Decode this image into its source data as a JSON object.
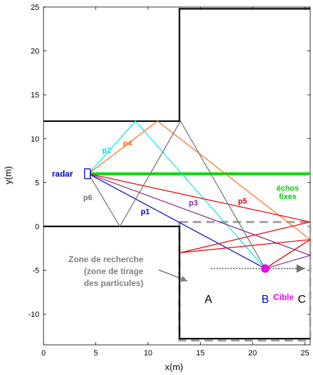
{
  "axes": {
    "xlabel": "x(m)",
    "ylabel": "y(m)",
    "xlim": [
      0,
      25.5
    ],
    "ylim": [
      -13.5,
      25
    ],
    "xticks": [
      0,
      5,
      10,
      15,
      20,
      25
    ],
    "yticks": [
      -10,
      -5,
      0,
      5,
      10,
      15,
      20,
      25
    ]
  },
  "colors": {
    "walls": "#000000",
    "zone": "#a0a0a0",
    "echos": "#00dd00",
    "p1": "#0000cc",
    "p2": "#00e5ee",
    "p3": "#7f2a8f",
    "p4": "#ff6a1a",
    "p5": "#e00000",
    "p6": "#707070",
    "target": "#ee00ee",
    "radar": "#0000cc",
    "scan": "#707070"
  },
  "walls": [
    [
      [
        0,
        12
      ],
      [
        13,
        12
      ],
      [
        13,
        24.8
      ],
      [
        25.5,
        24.8
      ]
    ],
    [
      [
        0,
        0
      ],
      [
        13,
        0
      ],
      [
        13,
        -12.8
      ],
      [
        25.5,
        -12.8
      ]
    ]
  ],
  "zone_outline": [
    [
      13,
      0.5
    ],
    [
      25.5,
      0.5
    ],
    [
      25.5,
      -13
    ],
    [
      13,
      -13
    ],
    [
      13,
      0.5
    ]
  ],
  "echos_line": [
    [
      4.3,
      6
    ],
    [
      25.5,
      6
    ]
  ],
  "radar_pos": [
    4.2,
    6
  ],
  "target_pos": [
    21.2,
    -4.8
  ],
  "scan_line": [
    [
      16,
      -4.8
    ],
    [
      25,
      -4.8
    ]
  ],
  "rays": [
    {
      "id": "p1",
      "label": "p1",
      "points": [
        [
          4.3,
          6
        ],
        [
          21.2,
          -4.8
        ]
      ],
      "label_pos": [
        9.3,
        1.4
      ]
    },
    {
      "id": "p2",
      "label": "p2",
      "points": [
        [
          4.3,
          6
        ],
        [
          8.8,
          12
        ],
        [
          21.2,
          -4.8
        ]
      ],
      "label_pos": [
        5.6,
        8.4
      ]
    },
    {
      "id": "p3",
      "label": "p3",
      "points": [
        [
          4.3,
          6
        ],
        [
          25.5,
          -3.3
        ],
        [
          21.2,
          -4.8
        ]
      ],
      "label_pos": [
        13.9,
        2.4
      ]
    },
    {
      "id": "p4",
      "label": "p4",
      "points": [
        [
          4.3,
          6
        ],
        [
          10.9,
          12
        ],
        [
          25.5,
          -1.5
        ],
        [
          21.2,
          -4.8
        ]
      ],
      "label_pos": [
        7.6,
        9.2
      ]
    },
    {
      "id": "p5",
      "label": "p5",
      "points": [
        [
          4.3,
          6
        ],
        [
          25.5,
          0.5
        ],
        [
          13.1,
          -3
        ],
        [
          25.5,
          -1.5
        ],
        [
          21.2,
          -4.8
        ]
      ],
      "label_pos": [
        18.6,
        2.6
      ]
    },
    {
      "id": "p6",
      "label": "p6",
      "points": [
        [
          4.3,
          6
        ],
        [
          7.3,
          0
        ],
        [
          13.1,
          12
        ],
        [
          21.2,
          -4.8
        ]
      ],
      "label_pos": [
        3.8,
        3
      ]
    }
  ],
  "labels": {
    "radar": "radar",
    "echos_line1": "échos",
    "echos_line2": "fixes",
    "zone_line1": "Zone de recherche",
    "zone_line2": "(zone de tirage",
    "zone_line3": "des particules)",
    "A": "A",
    "B": "B",
    "C": "C",
    "cible": "Cible"
  }
}
